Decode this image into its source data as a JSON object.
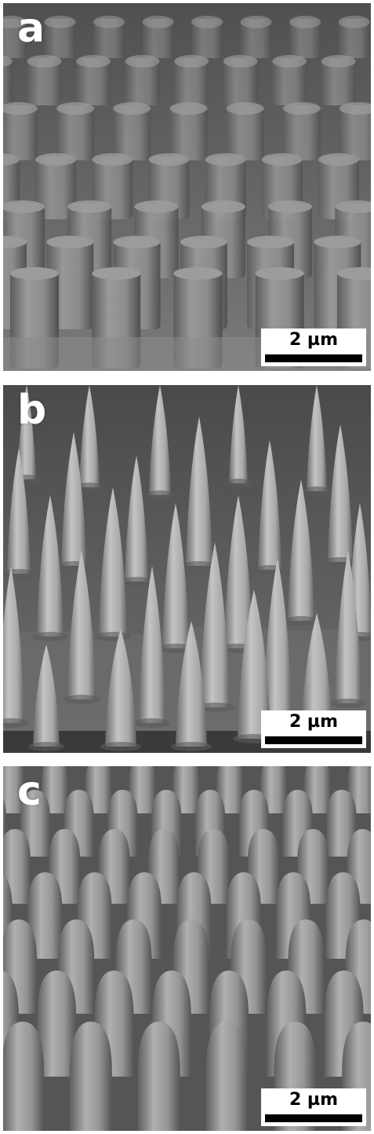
{
  "figure": {
    "panels": [
      {
        "id": "a",
        "letter": "a",
        "scale_label": "2 µm",
        "structure": "cylindrical-pillar-array"
      },
      {
        "id": "b",
        "letter": "b",
        "scale_label": "2 µm",
        "structure": "sharp-cone-array"
      },
      {
        "id": "c",
        "letter": "c",
        "scale_label": "2 µm",
        "structure": "dense-bullet-cone-array"
      }
    ]
  },
  "colors": {
    "background": "#ffffff",
    "label_text": "#ffffff",
    "scalebar_fill": "#ffffff",
    "scalebar_ink": "#000000"
  }
}
